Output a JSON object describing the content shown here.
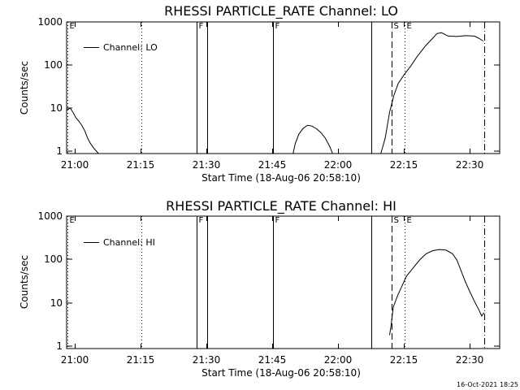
{
  "footer": {
    "timestamp": "16-Oct-2021 18:25"
  },
  "chart_data": [
    {
      "type": "line",
      "title": "RHESSI PARTICLE_RATE Channel: LO",
      "xlabel": "Start Time (18-Aug-06 20:58:10)",
      "ylabel": "Counts/sec",
      "yscale": "log",
      "ylim": [
        0.8,
        1200
      ],
      "xlim": [
        "20:58:10",
        "22:36:30"
      ],
      "x_ticks": [
        "21:00",
        "21:15",
        "21:30",
        "21:45",
        "22:00",
        "22:15",
        "22:30"
      ],
      "y_ticks": [
        "1",
        "10",
        "100",
        "1000"
      ],
      "legend": {
        "position": "top-left",
        "entries": [
          "Channel: LO"
        ]
      },
      "markers": [
        {
          "label": "E",
          "time": "20:58:10",
          "style": "dotted"
        },
        {
          "label": "F",
          "time": "21:27:40",
          "style": "solid"
        },
        {
          "label": "F",
          "time": "21:45:10",
          "style": "solid"
        },
        {
          "label": "S",
          "time": "22:12:10",
          "style": "dashed"
        },
        {
          "label": "E",
          "time": "22:15:10",
          "style": "dotted"
        }
      ],
      "extra_lines": [
        {
          "time": "21:15:00",
          "style": "dotted"
        },
        {
          "time": "21:30:10",
          "style": "solid"
        },
        {
          "time": "22:07:30",
          "style": "solid"
        },
        {
          "time": "22:33:10",
          "style": "dashdot"
        }
      ],
      "series": [
        {
          "name": "Channel: LO",
          "segments": [
            [
              [
                "20:58:10",
                9
              ],
              [
                "20:58:50",
                10
              ],
              [
                "20:59:30",
                8
              ],
              [
                "21:00:10",
                6
              ],
              [
                "21:00:50",
                5
              ],
              [
                "21:01:30",
                4
              ],
              [
                "21:02:10",
                3
              ],
              [
                "21:02:50",
                2
              ],
              [
                "21:03:30",
                1.5
              ],
              [
                "21:04:10",
                1.2
              ],
              [
                "21:04:50",
                1.0
              ],
              [
                "21:05:20",
                0.8
              ]
            ],
            [
              [
                "21:49:40",
                0.8
              ],
              [
                "21:50:10",
                1.5
              ],
              [
                "21:51:00",
                2.5
              ],
              [
                "21:52:00",
                3.4
              ],
              [
                "21:53:00",
                4.0
              ],
              [
                "21:54:00",
                3.8
              ],
              [
                "21:55:00",
                3.3
              ],
              [
                "21:56:00",
                2.7
              ],
              [
                "21:57:00",
                2.0
              ],
              [
                "21:58:00",
                1.3
              ],
              [
                "21:58:40",
                0.8
              ]
            ],
            [
              [
                "22:09:40",
                0.8
              ],
              [
                "22:10:40",
                2
              ],
              [
                "22:11:40",
                8
              ],
              [
                "22:12:40",
                20
              ],
              [
                "22:13:40",
                38
              ],
              [
                "22:15:00",
                60
              ],
              [
                "22:16:30",
                95
              ],
              [
                "22:18:00",
                160
              ],
              [
                "22:20:00",
                290
              ],
              [
                "22:21:30",
                420
              ],
              [
                "22:22:30",
                540
              ],
              [
                "22:23:30",
                560
              ],
              [
                "22:25:00",
                470
              ],
              [
                "22:27:00",
                460
              ],
              [
                "22:29:00",
                480
              ],
              [
                "22:31:00",
                470
              ],
              [
                "22:32:00",
                420
              ],
              [
                "22:33:00",
                360
              ]
            ]
          ]
        }
      ]
    },
    {
      "type": "line",
      "title": "RHESSI PARTICLE_RATE Channel: HI",
      "xlabel": "Start Time (18-Aug-06 20:58:10)",
      "ylabel": "Counts/sec",
      "yscale": "log",
      "ylim": [
        0.8,
        1200
      ],
      "xlim": [
        "20:58:10",
        "22:36:30"
      ],
      "x_ticks": [
        "21:00",
        "21:15",
        "21:30",
        "21:45",
        "22:00",
        "22:15",
        "22:30"
      ],
      "y_ticks": [
        "1",
        "10",
        "100",
        "1000"
      ],
      "legend": {
        "position": "top-left",
        "entries": [
          "Channel: HI"
        ]
      },
      "markers": [
        {
          "label": "E",
          "time": "20:58:10",
          "style": "dotted"
        },
        {
          "label": "F",
          "time": "21:27:40",
          "style": "solid"
        },
        {
          "label": "F",
          "time": "21:45:10",
          "style": "solid"
        },
        {
          "label": "S",
          "time": "22:12:10",
          "style": "dashed"
        },
        {
          "label": "E",
          "time": "22:15:10",
          "style": "dotted"
        }
      ],
      "extra_lines": [
        {
          "time": "21:15:00",
          "style": "dotted"
        },
        {
          "time": "21:30:10",
          "style": "solid"
        },
        {
          "time": "22:07:30",
          "style": "solid"
        },
        {
          "time": "22:33:10",
          "style": "dashdot"
        }
      ],
      "series": [
        {
          "name": "Channel: HI",
          "segments": [
            [
              [
                "22:11:40",
                1.8
              ],
              [
                "22:12:00",
                3
              ],
              [
                "22:12:30",
                8
              ],
              [
                "22:13:30",
                15
              ],
              [
                "22:14:30",
                25
              ],
              [
                "22:15:30",
                42
              ],
              [
                "22:17:00",
                65
              ],
              [
                "22:18:30",
                100
              ],
              [
                "22:20:00",
                140
              ],
              [
                "22:21:30",
                165
              ],
              [
                "22:23:00",
                175
              ],
              [
                "22:24:30",
                170
              ],
              [
                "22:26:00",
                140
              ],
              [
                "22:27:00",
                100
              ],
              [
                "22:28:00",
                55
              ],
              [
                "22:29:00",
                30
              ],
              [
                "22:30:00",
                18
              ],
              [
                "22:31:00",
                11
              ],
              [
                "22:32:00",
                7
              ],
              [
                "22:32:40",
                5
              ],
              [
                "22:33:10",
                6
              ]
            ]
          ]
        }
      ]
    }
  ]
}
